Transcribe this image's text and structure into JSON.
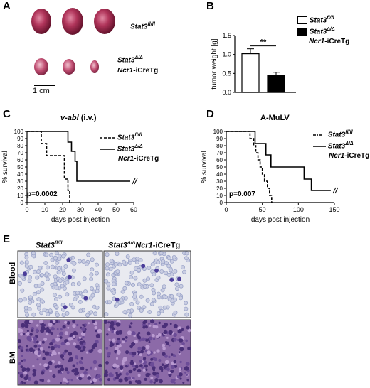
{
  "panels": {
    "A": {
      "letter": "A",
      "label_top": {
        "gene": "Stat3",
        "sup": "fl/fl"
      },
      "label_bottom": {
        "gene": "Stat3",
        "sup": "Δ/Δ",
        "line2_gene": "Ncr1",
        "line2_rest": "-iCreTg"
      },
      "scale_bar": "1 cm"
    },
    "B": {
      "letter": "B"
    },
    "C": {
      "letter": "C",
      "title_italic": "v-abl",
      "title_rest": " (i.v.)",
      "pvalue": "p=0.0002"
    },
    "D": {
      "letter": "D",
      "title": "A-MuLV",
      "pvalue": "p=0.007"
    },
    "E": {
      "letter": "E",
      "col1": {
        "gene": "Stat3",
        "sup": "fl/fl"
      },
      "col2": {
        "gene": "Stat3",
        "sup": "Δ/Δ",
        "gene2": "Ncr1",
        "rest": "-iCreTg"
      },
      "row1": "Blood",
      "row2": "BM"
    }
  },
  "legend": {
    "s1": {
      "gene": "Stat3",
      "sup": "fl/fl"
    },
    "s2": {
      "gene": "Stat3",
      "sup": "Δ/Δ",
      "line2_gene": "Ncr1",
      "line2_rest": "-iCreTg"
    }
  },
  "colors": {
    "tumor_red": "#b0345a",
    "blood_cell": "#9aa3c8",
    "bm_purple": "#7a5a9c"
  },
  "chart_data": [
    {
      "id": "B",
      "type": "bar",
      "categories": [
        "Stat3fl/fl",
        "Stat3Δ/Δ Ncr1-iCreTg"
      ],
      "values": [
        1.02,
        0.45
      ],
      "errors": [
        0.13,
        0.08
      ],
      "fills": [
        "#ffffff",
        "#000000"
      ],
      "ylabel": "tumor weight [g]",
      "ylim": [
        0,
        1.5
      ],
      "yticks": [
        "0.0",
        "0.5",
        "1.0",
        "1.5"
      ],
      "significance": "**"
    },
    {
      "id": "C",
      "type": "line",
      "xlabel": "days post injection",
      "ylabel": "% survival",
      "xlim": [
        0,
        60
      ],
      "ylim": [
        0,
        100
      ],
      "xticks": [
        "0",
        "10",
        "20",
        "30",
        "40",
        "50",
        "60"
      ],
      "yticks": [
        "0",
        "10",
        "20",
        "30",
        "40",
        "50",
        "60",
        "70",
        "80",
        "90",
        "100"
      ],
      "series": [
        {
          "style": "dashed",
          "steps": [
            [
              0,
              100
            ],
            [
              8,
              100
            ],
            [
              8,
              83
            ],
            [
              11,
              83
            ],
            [
              11,
              66
            ],
            [
              21,
              66
            ],
            [
              21,
              33
            ],
            [
              23,
              33
            ],
            [
              23,
              17
            ],
            [
              24,
              17
            ],
            [
              24,
              0
            ],
            [
              25,
              0
            ]
          ]
        },
        {
          "style": "solid",
          "steps": [
            [
              0,
              100
            ],
            [
              23,
              100
            ],
            [
              23,
              85
            ],
            [
              25,
              85
            ],
            [
              25,
              72
            ],
            [
              27,
              72
            ],
            [
              27,
              58
            ],
            [
              28,
              58
            ],
            [
              28,
              30
            ],
            [
              58,
              30
            ]
          ]
        }
      ]
    },
    {
      "id": "D",
      "type": "line",
      "xlabel": "days post injection",
      "ylabel": "% survival",
      "xlim": [
        0,
        150
      ],
      "ylim": [
        0,
        100
      ],
      "xticks": [
        "0",
        "50",
        "100",
        "150"
      ],
      "yticks": [
        "0",
        "10",
        "20",
        "30",
        "40",
        "50",
        "60",
        "70",
        "80",
        "90",
        "100"
      ],
      "series": [
        {
          "style": "dashed",
          "steps": [
            [
              0,
              100
            ],
            [
              33,
              100
            ],
            [
              33,
              90
            ],
            [
              38,
              90
            ],
            [
              38,
              80
            ],
            [
              41,
              80
            ],
            [
              41,
              70
            ],
            [
              44,
              70
            ],
            [
              44,
              60
            ],
            [
              47,
              60
            ],
            [
              47,
              50
            ],
            [
              50,
              50
            ],
            [
              50,
              40
            ],
            [
              53,
              40
            ],
            [
              53,
              30
            ],
            [
              57,
              30
            ],
            [
              57,
              20
            ],
            [
              60,
              20
            ],
            [
              60,
              10
            ],
            [
              63,
              10
            ],
            [
              63,
              0
            ],
            [
              66,
              0
            ]
          ]
        },
        {
          "style": "solid",
          "steps": [
            [
              0,
              100
            ],
            [
              40,
              100
            ],
            [
              40,
              83
            ],
            [
              55,
              83
            ],
            [
              55,
              67
            ],
            [
              62,
              67
            ],
            [
              62,
              50
            ],
            [
              108,
              50
            ],
            [
              108,
              33
            ],
            [
              118,
              33
            ],
            [
              118,
              17
            ],
            [
              145,
              17
            ]
          ]
        }
      ]
    }
  ]
}
